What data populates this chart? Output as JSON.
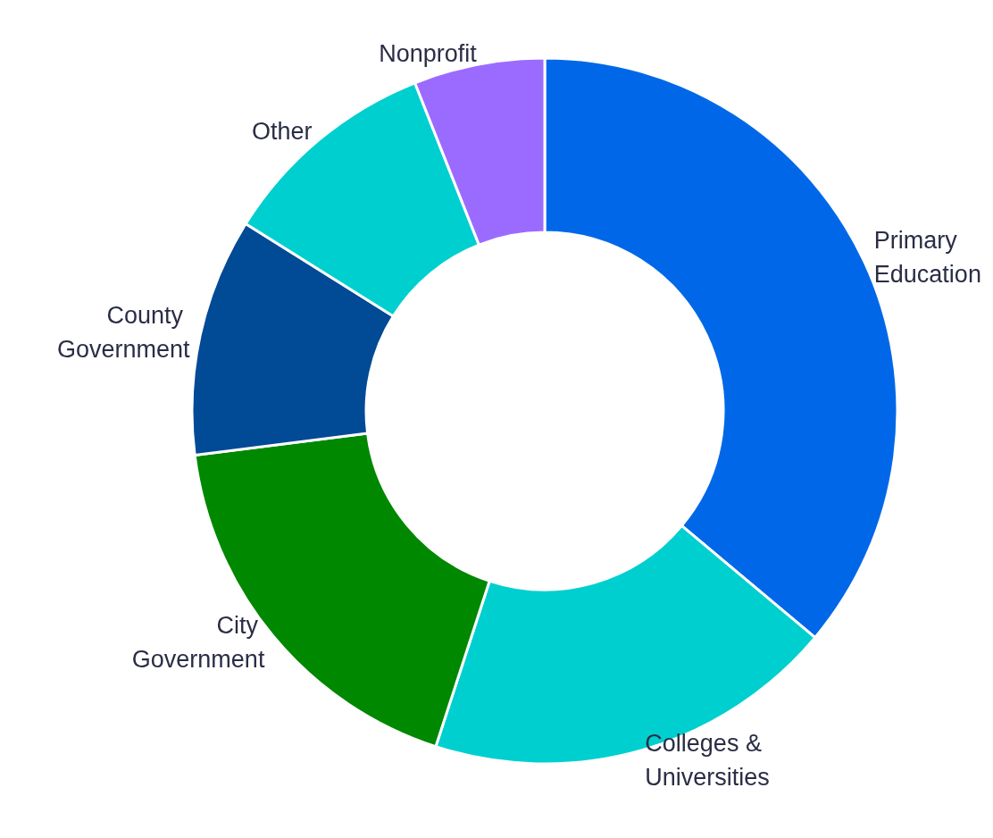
{
  "chart_data": {
    "type": "donut",
    "categories": [
      "Primary Education",
      "Colleges & Universities",
      "City Government",
      "County Government",
      "Other",
      "Nonprofit"
    ],
    "values": [
      36.1,
      18.9,
      18.0,
      10.9,
      10.1,
      6.0
    ],
    "colors": [
      "#0068e8",
      "#00cfcf",
      "#008800",
      "#004a96",
      "#00cfcf",
      "#9b6bff"
    ],
    "legend": false
  }
}
